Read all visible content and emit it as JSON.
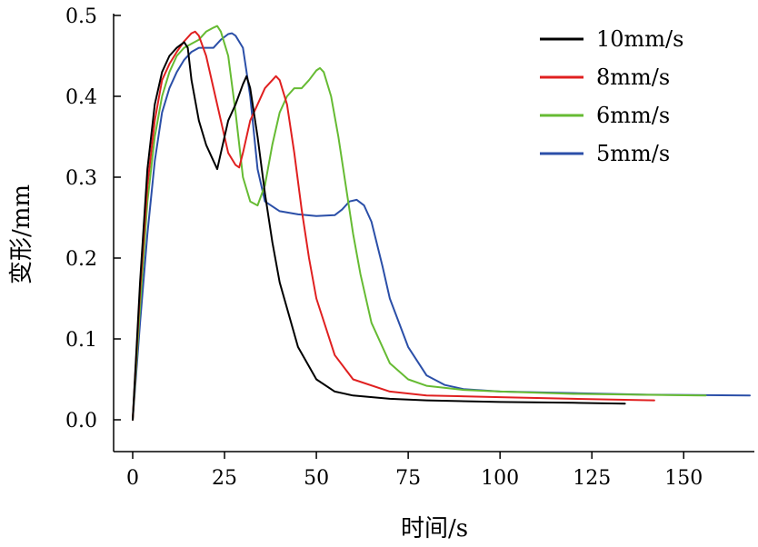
{
  "chart_data": {
    "type": "line",
    "xlabel": "时间/s",
    "ylabel": "变形/mm",
    "xlim": [
      0,
      168
    ],
    "ylim": [
      0,
      0.5
    ],
    "xticks": [
      0,
      25,
      50,
      75,
      100,
      125,
      150
    ],
    "yticks": [
      0.0,
      0.1,
      0.2,
      0.3,
      0.4,
      0.5
    ],
    "xtick_labels": [
      "0",
      "25",
      "50",
      "75",
      "100",
      "125",
      "150"
    ],
    "ytick_labels": [
      "0.0",
      "0.1",
      "0.2",
      "0.3",
      "0.4",
      "0.5"
    ],
    "legend_position": "top-right",
    "series": [
      {
        "name": "10mm/s",
        "color": "#000000",
        "x": [
          0,
          2,
          4,
          6,
          8,
          10,
          12,
          14,
          15,
          16,
          18,
          20,
          22,
          23,
          24,
          26,
          28,
          30,
          31,
          32,
          34,
          36,
          38,
          40,
          45,
          50,
          55,
          60,
          70,
          80,
          100,
          120,
          134
        ],
        "y": [
          0,
          0.17,
          0.31,
          0.39,
          0.43,
          0.45,
          0.46,
          0.467,
          0.46,
          0.42,
          0.37,
          0.34,
          0.32,
          0.31,
          0.33,
          0.37,
          0.39,
          0.415,
          0.425,
          0.41,
          0.35,
          0.28,
          0.22,
          0.17,
          0.09,
          0.05,
          0.035,
          0.03,
          0.026,
          0.024,
          0.022,
          0.021,
          0.02
        ]
      },
      {
        "name": "8mm/s",
        "color": "#e02020",
        "x": [
          0,
          2,
          4,
          6,
          8,
          10,
          12,
          14,
          16,
          17,
          18,
          20,
          22,
          24,
          26,
          28,
          29,
          30,
          32,
          34,
          36,
          38,
          39,
          40,
          42,
          44,
          46,
          48,
          50,
          55,
          60,
          70,
          80,
          100,
          120,
          142
        ],
        "y": [
          0,
          0.16,
          0.29,
          0.37,
          0.42,
          0.44,
          0.455,
          0.468,
          0.478,
          0.48,
          0.475,
          0.45,
          0.41,
          0.37,
          0.33,
          0.315,
          0.312,
          0.33,
          0.37,
          0.39,
          0.41,
          0.42,
          0.425,
          0.42,
          0.39,
          0.33,
          0.26,
          0.2,
          0.15,
          0.08,
          0.05,
          0.035,
          0.03,
          0.028,
          0.026,
          0.024
        ]
      },
      {
        "name": "6mm/s",
        "color": "#66bb33",
        "x": [
          0,
          2,
          4,
          6,
          8,
          10,
          12,
          14,
          16,
          18,
          20,
          22,
          23,
          24,
          26,
          28,
          30,
          32,
          34,
          36,
          38,
          40,
          42,
          44,
          46,
          48,
          50,
          51,
          52,
          54,
          56,
          58,
          60,
          62,
          65,
          70,
          75,
          80,
          90,
          100,
          120,
          156
        ],
        "y": [
          0,
          0.14,
          0.27,
          0.35,
          0.4,
          0.43,
          0.45,
          0.46,
          0.465,
          0.47,
          0.48,
          0.485,
          0.487,
          0.48,
          0.45,
          0.38,
          0.3,
          0.27,
          0.265,
          0.29,
          0.34,
          0.38,
          0.4,
          0.41,
          0.41,
          0.42,
          0.432,
          0.435,
          0.43,
          0.4,
          0.35,
          0.29,
          0.23,
          0.18,
          0.12,
          0.07,
          0.05,
          0.042,
          0.037,
          0.035,
          0.032,
          0.03
        ]
      },
      {
        "name": "5mm/s",
        "color": "#2b4fa8",
        "x": [
          0,
          2,
          4,
          6,
          8,
          10,
          12,
          14,
          16,
          18,
          20,
          22,
          24,
          26,
          27,
          28,
          30,
          32,
          34,
          36,
          40,
          45,
          50,
          55,
          57,
          59,
          61,
          63,
          65,
          68,
          70,
          75,
          80,
          85,
          90,
          100,
          120,
          140,
          168
        ],
        "y": [
          0,
          0.12,
          0.23,
          0.32,
          0.38,
          0.41,
          0.43,
          0.445,
          0.455,
          0.46,
          0.46,
          0.46,
          0.47,
          0.477,
          0.478,
          0.475,
          0.46,
          0.4,
          0.31,
          0.27,
          0.258,
          0.254,
          0.252,
          0.253,
          0.26,
          0.27,
          0.272,
          0.265,
          0.245,
          0.19,
          0.15,
          0.09,
          0.055,
          0.043,
          0.038,
          0.035,
          0.033,
          0.031,
          0.03
        ]
      }
    ]
  }
}
